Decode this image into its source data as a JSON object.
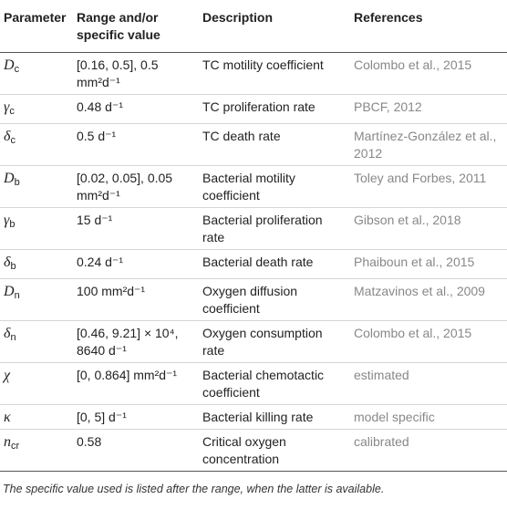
{
  "table": {
    "columns": [
      "Parameter",
      "Range and/or specific value",
      "Description",
      "References"
    ],
    "rows": [
      [
        {
          "symbol": "D",
          "sub": "c"
        },
        "[0.16, 0.5], 0.5 mm²d⁻¹",
        "TC motility coefficient",
        "Colombo et al., 2015"
      ],
      [
        {
          "symbol": "γ",
          "sub": "c"
        },
        "0.48 d⁻¹",
        "TC proliferation rate",
        "PBCF, 2012"
      ],
      [
        {
          "symbol": "δ",
          "sub": "c"
        },
        "0.5 d⁻¹",
        "TC death rate",
        "Martínez-González et al., 2012"
      ],
      [
        {
          "symbol": "D",
          "sub": "b"
        },
        "[0.02, 0.05], 0.05 mm²d⁻¹",
        "Bacterial motility coefficient",
        "Toley and Forbes, 2011"
      ],
      [
        {
          "symbol": "γ",
          "sub": "b"
        },
        "15 d⁻¹",
        "Bacterial proliferation rate",
        "Gibson et al., 2018"
      ],
      [
        {
          "symbol": "δ",
          "sub": "b"
        },
        "0.24 d⁻¹",
        "Bacterial death rate",
        "Phaiboun et al., 2015"
      ],
      [
        {
          "symbol": "D",
          "sub": "n"
        },
        "100 mm²d⁻¹",
        "Oxygen diffusion coefficient",
        "Matzavinos et al., 2009"
      ],
      [
        {
          "symbol": "δ",
          "sub": "n"
        },
        "[0.46, 9.21] × 10⁴, 8640 d⁻¹",
        "Oxygen consumption rate",
        "Colombo et al., 2015"
      ],
      [
        {
          "symbol": "χ",
          "sub": ""
        },
        "[0, 0.864] mm²d⁻¹",
        "Bacterial chemotactic coefficient",
        "estimated"
      ],
      [
        {
          "symbol": "κ",
          "sub": ""
        },
        "[0, 5] d⁻¹",
        "Bacterial killing rate",
        "model specific"
      ],
      [
        {
          "symbol": "n",
          "sub": "cr"
        },
        "0.58",
        "Critical oxygen concentration",
        "calibrated"
      ]
    ],
    "footnote": "The specific value used is listed after the range, when the latter is available."
  }
}
